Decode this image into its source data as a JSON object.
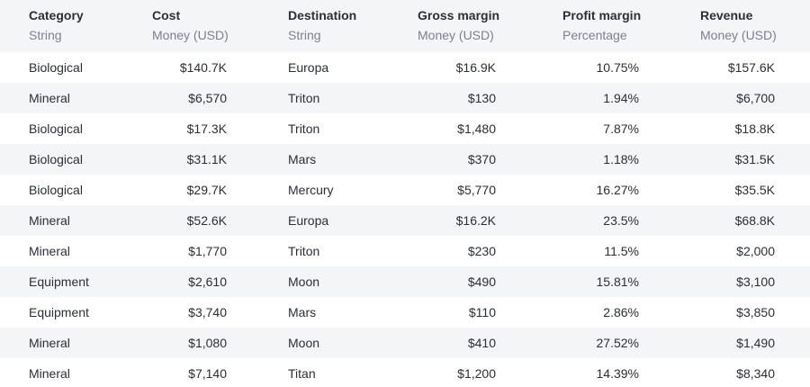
{
  "columns": [
    {
      "name": "Category",
      "type": "String"
    },
    {
      "name": "Cost",
      "type": "Money (USD)"
    },
    {
      "name": "Destination",
      "type": "String"
    },
    {
      "name": "Gross margin",
      "type": "Money (USD)"
    },
    {
      "name": "Profit margin",
      "type": "Percentage"
    },
    {
      "name": "Revenue",
      "type": "Money (USD)"
    }
  ],
  "rows": [
    [
      "Biological",
      "$140.7K",
      "Europa",
      "$16.9K",
      "10.75%",
      "$157.6K"
    ],
    [
      "Mineral",
      "$6,570",
      "Triton",
      "$130",
      "1.94%",
      "$6,700"
    ],
    [
      "Biological",
      "$17.3K",
      "Triton",
      "$1,480",
      "7.87%",
      "$18.8K"
    ],
    [
      "Biological",
      "$31.1K",
      "Mars",
      "$370",
      "1.18%",
      "$31.5K"
    ],
    [
      "Biological",
      "$29.7K",
      "Mercury",
      "$5,770",
      "16.27%",
      "$35.5K"
    ],
    [
      "Mineral",
      "$52.6K",
      "Europa",
      "$16.2K",
      "23.5%",
      "$68.8K"
    ],
    [
      "Mineral",
      "$1,770",
      "Triton",
      "$230",
      "11.5%",
      "$2,000"
    ],
    [
      "Equipment",
      "$2,610",
      "Moon",
      "$490",
      "15.81%",
      "$3,100"
    ],
    [
      "Equipment",
      "$3,740",
      "Mars",
      "$110",
      "2.86%",
      "$3,850"
    ],
    [
      "Mineral",
      "$1,080",
      "Moon",
      "$410",
      "27.52%",
      "$1,490"
    ],
    [
      "Mineral",
      "$7,140",
      "Titan",
      "$1,200",
      "14.39%",
      "$8,340"
    ]
  ]
}
